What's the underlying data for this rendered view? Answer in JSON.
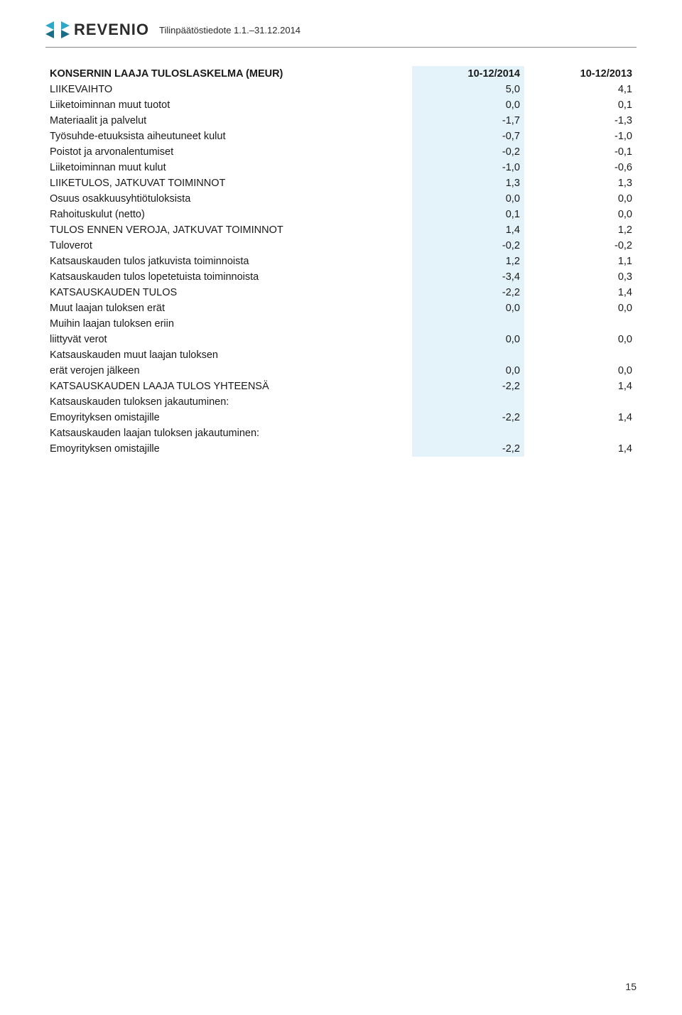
{
  "brand": {
    "name": "REVENIO",
    "icon_color_1": "#2ea7c9",
    "icon_color_2": "#1a6d87",
    "text_color": "#2b2b2b"
  },
  "doc_meta": "Tilinpäätöstiedote 1.1.–31.12.2014",
  "page_number": "15",
  "table": {
    "header": {
      "title": "KONSERNIN LAAJA TULOSLASKELMA (MEUR)",
      "col1": "10-12/2014",
      "col2": "10-12/2013"
    },
    "shade_color": "#e4f3f9",
    "rows": [
      {
        "label": "LIIKEVAIHTO",
        "c1": "5,0",
        "c2": "4,1"
      },
      {
        "label": "Liiketoiminnan muut tuotot",
        "c1": "0,0",
        "c2": "0,1"
      },
      {
        "label": "Materiaalit ja palvelut",
        "c1": "-1,7",
        "c2": "-1,3"
      },
      {
        "label": "Työsuhde-etuuksista aiheutuneet kulut",
        "c1": "-0,7",
        "c2": "-1,0"
      },
      {
        "label": "Poistot ja arvonalentumiset",
        "c1": "-0,2",
        "c2": "-0,1"
      },
      {
        "label": "Liiketoiminnan muut kulut",
        "c1": "-1,0",
        "c2": "-0,6"
      },
      {
        "label": "LIIKETULOS, JATKUVAT TOIMINNOT",
        "c1": "1,3",
        "c2": "1,3"
      },
      {
        "label": "Osuus osakkuusyhtiötuloksista",
        "c1": "0,0",
        "c2": "0,0"
      },
      {
        "label": "Rahoituskulut (netto)",
        "c1": "0,1",
        "c2": "0,0"
      },
      {
        "label": "TULOS ENNEN VEROJA, JATKUVAT TOIMINNOT",
        "c1": "1,4",
        "c2": "1,2"
      },
      {
        "label": "Tuloverot",
        "c1": "-0,2",
        "c2": "-0,2"
      },
      {
        "label": "Katsauskauden tulos jatkuvista toiminnoista",
        "c1": "1,2",
        "c2": "1,1"
      },
      {
        "label": "Katsauskauden tulos lopetetuista toiminnoista",
        "c1": "-3,4",
        "c2": "0,3"
      },
      {
        "label": "KATSAUSKAUDEN TULOS",
        "c1": "-2,2",
        "c2": "1,4"
      },
      {
        "label": "Muut laajan tuloksen erät",
        "c1": "0,0",
        "c2": "0,0"
      },
      {
        "label": "Muihin laajan tuloksen eriin",
        "c1": "",
        "c2": ""
      },
      {
        "label": "liittyvät verot",
        "c1": "0,0",
        "c2": "0,0"
      },
      {
        "label": "Katsauskauden muut laajan tuloksen",
        "c1": "",
        "c2": ""
      },
      {
        "label": "erät verojen jälkeen",
        "c1": "0,0",
        "c2": "0,0"
      },
      {
        "label": "KATSAUSKAUDEN LAAJA TULOS YHTEENSÄ",
        "c1": "-2,2",
        "c2": "1,4"
      },
      {
        "label": "Katsauskauden tuloksen jakautuminen:",
        "c1": "",
        "c2": ""
      },
      {
        "label": "Emoyrityksen omistajille",
        "c1": "-2,2",
        "c2": "1,4"
      },
      {
        "label": "Katsauskauden laajan tuloksen jakautuminen:",
        "c1": "",
        "c2": ""
      },
      {
        "label": "Emoyrityksen omistajille",
        "c1": "-2,2",
        "c2": "1,4"
      }
    ]
  }
}
